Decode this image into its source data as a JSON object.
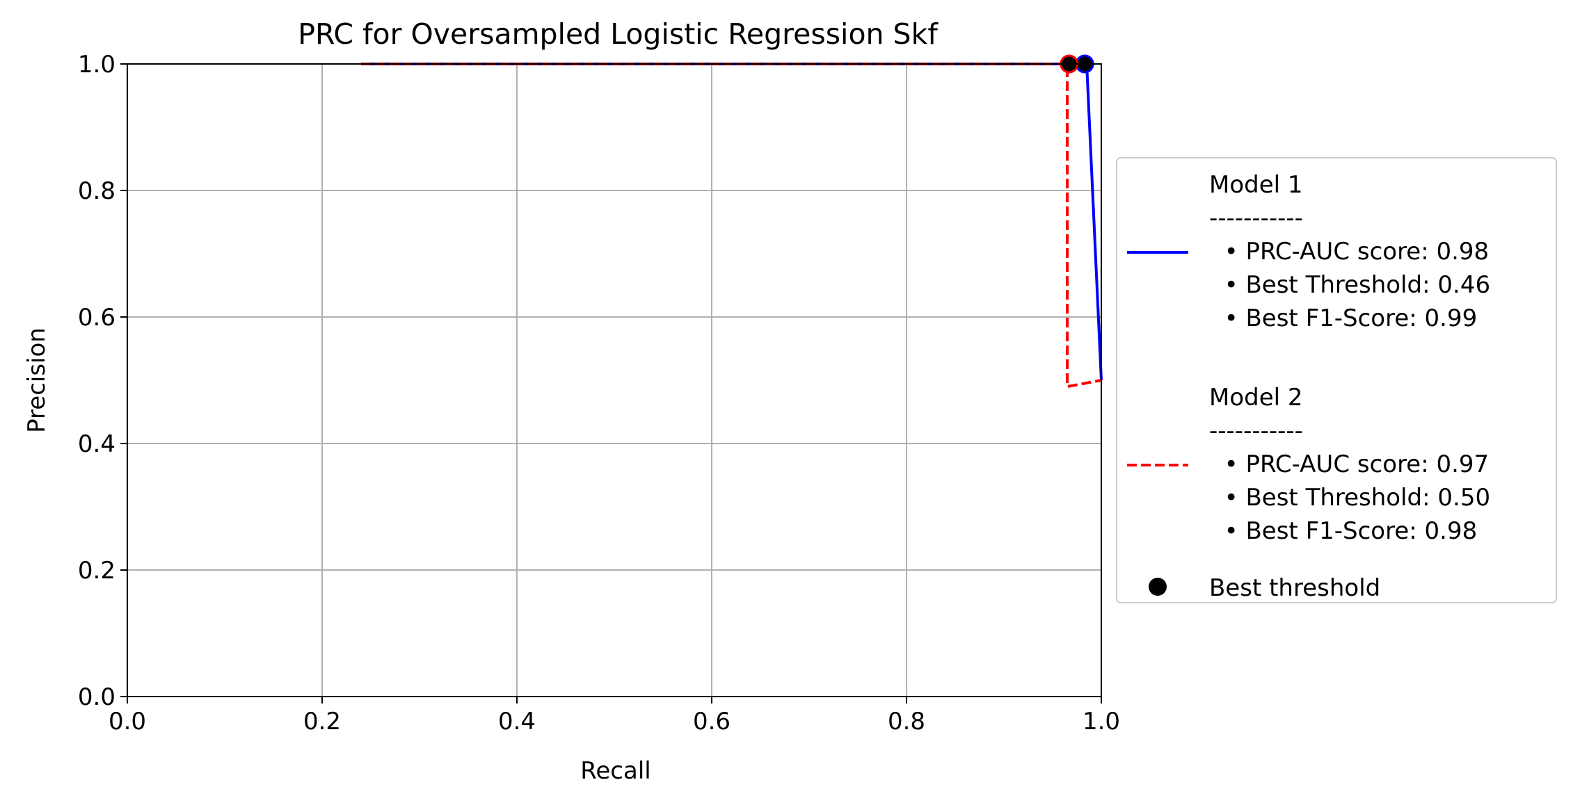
{
  "chart_data": {
    "type": "line",
    "title": "PRC for Oversampled Logistic Regression Skf",
    "xlabel": "Recall",
    "ylabel": "Precision",
    "xlim": [
      0.0,
      1.0
    ],
    "ylim": [
      0.0,
      1.0
    ],
    "xticks": [
      "0.0",
      "0.2",
      "0.4",
      "0.6",
      "0.8",
      "1.0"
    ],
    "yticks": [
      "0.0",
      "0.2",
      "0.4",
      "0.6",
      "0.8",
      "1.0"
    ],
    "grid": true,
    "legend_position": "outside-right",
    "series": [
      {
        "name": "Model 1",
        "color": "#0000ff",
        "style": "solid",
        "points": [
          [
            0.24,
            1.0
          ],
          [
            0.985,
            1.0
          ],
          [
            1.0,
            0.5
          ]
        ],
        "best_point": [
          0.983,
          1.0
        ],
        "legend_lines": [
          "Model 1",
          "-----------",
          "  • PRC-AUC score: 0.98",
          "  • Best Threshold: 0.46",
          "  • Best F1-Score: 0.99"
        ]
      },
      {
        "name": "Model 2",
        "color": "#ff0000",
        "style": "dashed",
        "points": [
          [
            0.24,
            1.0
          ],
          [
            0.965,
            1.0
          ],
          [
            0.965,
            0.49
          ],
          [
            1.0,
            0.5
          ]
        ],
        "best_point": [
          0.967,
          1.0
        ],
        "legend_lines": [
          "Model 2",
          "-----------",
          "  • PRC-AUC score: 0.97",
          "  • Best Threshold: 0.50",
          "  • Best F1-Score: 0.98"
        ]
      }
    ],
    "marker_legend": "Best threshold",
    "marker_color": "#000000"
  }
}
